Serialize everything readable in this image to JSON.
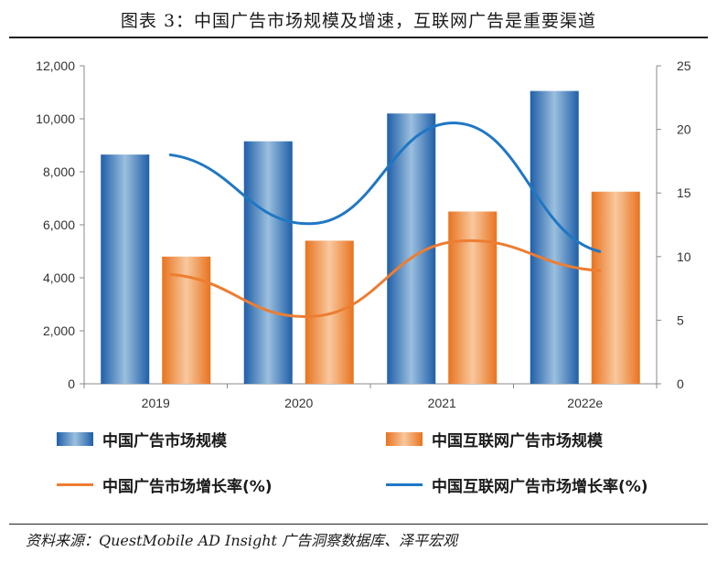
{
  "title": "图表 3：中国广告市场规模及增速，互联网广告是重要渠道",
  "source": "资料来源：QuestMobile  AD  Insight 广告洞察数据库、泽平宏观",
  "chart_data": {
    "type": "bar",
    "categories": [
      "2019",
      "2020",
      "2021",
      "2022e"
    ],
    "left_axis": {
      "ylim": [
        0,
        12000
      ],
      "ticks": [
        "0",
        "2,000",
        "4,000",
        "6,000",
        "8,000",
        "10,000",
        "12,000"
      ]
    },
    "right_axis": {
      "ylim": [
        0,
        25
      ],
      "ticks": [
        "0",
        "5",
        "10",
        "15",
        "20",
        "25"
      ]
    },
    "bar_series": [
      {
        "name": "中国广告市场规模",
        "values": [
          8650,
          9150,
          10200,
          11050
        ],
        "color": "#2e75b6"
      },
      {
        "name": "中国互联网广告市场规模",
        "values": [
          4800,
          5400,
          6500,
          7250
        ],
        "color": "#ed7d31"
      }
    ],
    "line_series": [
      {
        "name": "中国广告市场增长率(%)",
        "values": [
          8.6,
          5.3,
          11.2,
          8.9
        ],
        "color": "#ed7d31",
        "axis": "right"
      },
      {
        "name": "中国互联网广告市场增长率(%)",
        "values": [
          18.0,
          12.6,
          20.5,
          10.4
        ],
        "color": "#1f77c4",
        "axis": "right"
      }
    ],
    "grid": false,
    "legend": "bottom"
  }
}
